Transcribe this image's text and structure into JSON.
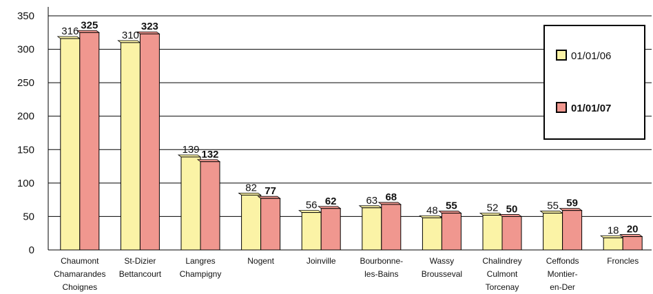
{
  "chart_data": {
    "type": "bar",
    "title": "",
    "xlabel": "",
    "ylabel": "",
    "ylim": [
      0,
      350
    ],
    "yticks": [
      0,
      50,
      100,
      150,
      200,
      250,
      300,
      350
    ],
    "grid": true,
    "legend_position": "top-right",
    "categories": [
      [
        "Chaumont",
        "Chamarandes",
        "Choignes"
      ],
      [
        "St-Dizier",
        "Bettancourt"
      ],
      [
        "Langres",
        "Champigny"
      ],
      [
        "Nogent"
      ],
      [
        "Joinville"
      ],
      [
        "Bourbonne-",
        "les-Bains"
      ],
      [
        "Wassy",
        "Brousseval"
      ],
      [
        "Chalindrey",
        "Culmont",
        "Torcenay"
      ],
      [
        "Ceffonds",
        "Montier-",
        "en-Der"
      ],
      [
        "Froncles"
      ]
    ],
    "series": [
      {
        "name": "01/01/06",
        "values": [
          316,
          310,
          139,
          82,
          56,
          63,
          48,
          52,
          55,
          18
        ],
        "color": "#fbf3a6",
        "bold": false
      },
      {
        "name": "01/01/07",
        "values": [
          325,
          323,
          132,
          77,
          62,
          68,
          55,
          50,
          59,
          20
        ],
        "color": "#f0978f",
        "bold": true
      }
    ]
  }
}
